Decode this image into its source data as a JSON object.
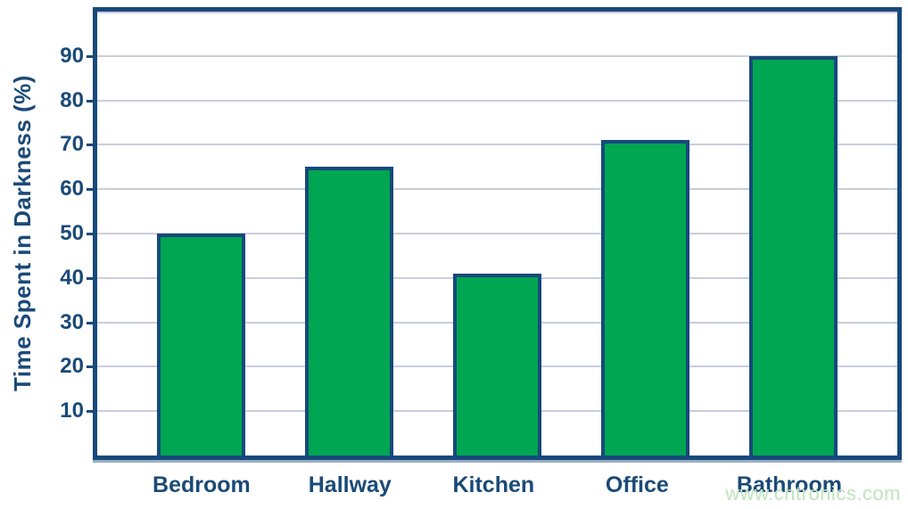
{
  "chart_data": {
    "type": "bar",
    "categories": [
      "Bedroom",
      "Hallway",
      "Kitchen",
      "Office",
      "Bathroom"
    ],
    "values": [
      50,
      65,
      41,
      71,
      90
    ],
    "title": "",
    "xlabel": "",
    "ylabel": "Time Spent in Darkness (%)",
    "ylim": [
      0,
      100
    ],
    "ytick_interval": 10,
    "ytick_labels": [
      "10",
      "20",
      "30",
      "40",
      "50",
      "60",
      "70",
      "80",
      "90"
    ],
    "grid": true,
    "legend": false,
    "colors": {
      "bar_fill": "#00A651",
      "bar_border": "#17497B",
      "axis_border": "#17497B",
      "gridline": "#C9CEDC",
      "text": "#1B4A77"
    }
  },
  "watermark": {
    "text": "www.cntronics.com",
    "color": "#BFE5BD"
  }
}
